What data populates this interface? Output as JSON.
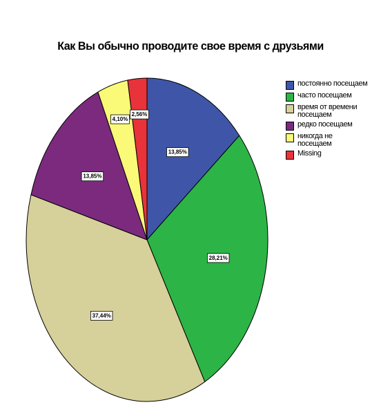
{
  "chart_data": {
    "type": "pie",
    "title": "Как Вы обычно проводите свое время с друзьями",
    "categories": [
      "постоянно посещаем",
      "часто посещаем",
      "время от времени посещаем",
      "редко посещаем",
      "никогда не посещаем",
      "Missing"
    ],
    "values": [
      13.85,
      28.21,
      37.44,
      13.85,
      4.1,
      2.56
    ],
    "data_labels": [
      "13,85%",
      "28,21%",
      "37,44%",
      "13,85%",
      "4,10%",
      "2,56%"
    ],
    "colors": [
      "#3f56a8",
      "#2db446",
      "#d6d09a",
      "#7b2a7e",
      "#fafa78",
      "#e8333a"
    ],
    "legend": {
      "placement": "right",
      "items": [
        {
          "label": "постоянно посещаем",
          "color": "#3f56a8"
        },
        {
          "label": "часто посещаем",
          "color": "#2db446"
        },
        {
          "label": "время от времени посещаем",
          "color": "#d6d09a"
        },
        {
          "label": "редко посещаем",
          "color": "#7b2a7e"
        },
        {
          "label": "никогда не посещаем",
          "color": "#fafa78"
        },
        {
          "label": "Missing",
          "color": "#e8333a"
        }
      ]
    }
  }
}
